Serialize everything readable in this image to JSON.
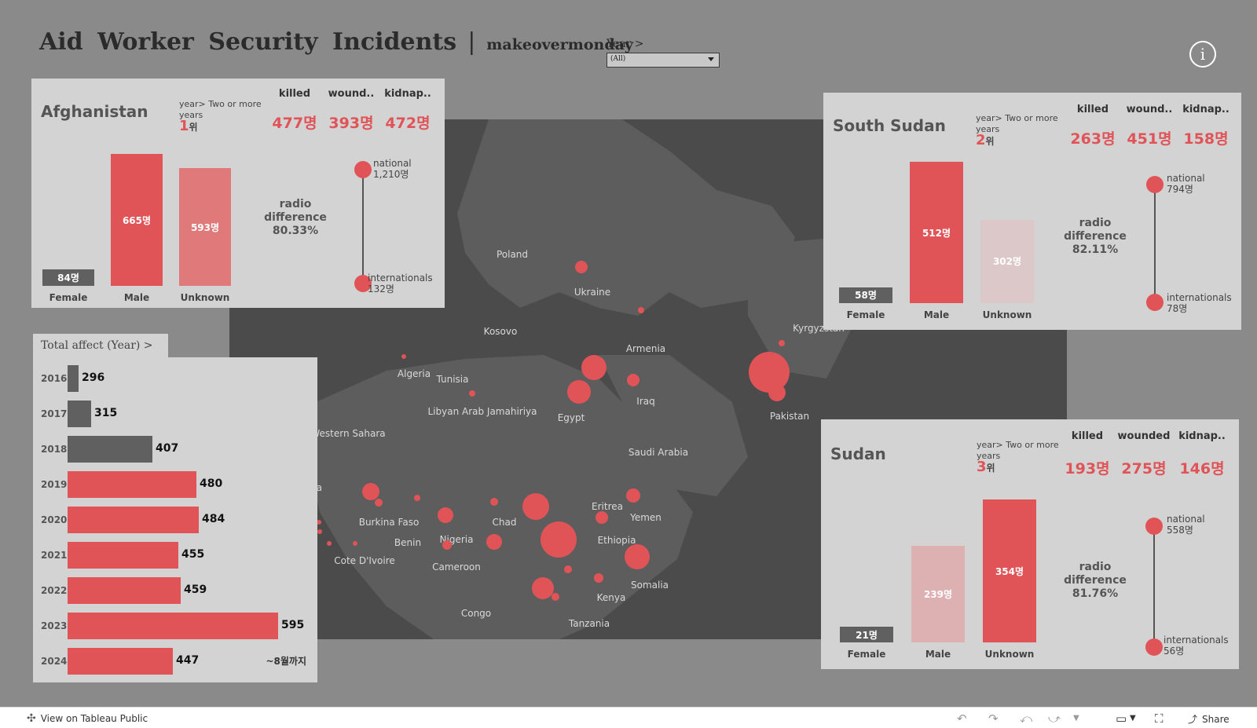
{
  "header": {
    "title": "Aid Worker Security Incidents",
    "separator": "|",
    "subtitle": "makeovermonday"
  },
  "filter": {
    "label": "Year  >",
    "value": "(All)"
  },
  "info_icon": "i",
  "colors": {
    "accent": "#e05458",
    "dark_bar": "#606060",
    "panel": "#d3d3d3",
    "map": "#4b4b4b"
  },
  "afghanistan": {
    "name": "Afghanistan",
    "rank_note": "year> Two or more years",
    "rank": "1",
    "rank_unit": "위",
    "stat_headers": [
      "killed",
      "wound..",
      "kidnap.."
    ],
    "stat_values": [
      "477명",
      "393명",
      "472명"
    ],
    "bars": [
      {
        "cat": "Female",
        "label": "84명",
        "value": 84
      },
      {
        "cat": "Male",
        "label": "665명",
        "value": 665
      },
      {
        "cat": "Unknown",
        "label": "593명",
        "value": 593
      }
    ],
    "radio": "radio difference",
    "radio_pct": "80.33%",
    "national_label": "national",
    "national_val": "1,210명",
    "intl_label": "internationals",
    "intl_val": "132명"
  },
  "south_sudan": {
    "name": "South Sudan",
    "rank_note": "year> Two or more years",
    "rank": "2",
    "rank_unit": "위",
    "stat_headers": [
      "killed",
      "wound..",
      "kidnap.."
    ],
    "stat_values": [
      "263명",
      "451명",
      "158명"
    ],
    "bars": [
      {
        "cat": "Female",
        "label": "58명",
        "value": 58
      },
      {
        "cat": "Male",
        "label": "512명",
        "value": 512
      },
      {
        "cat": "Unknown",
        "label": "302명",
        "value": 302
      }
    ],
    "radio": "radio difference",
    "radio_pct": "82.11%",
    "national_label": "national",
    "national_val": "794명",
    "intl_label": "internationals",
    "intl_val": "78명"
  },
  "sudan": {
    "name": "Sudan",
    "rank_note": "year> Two or more years",
    "rank": "3",
    "rank_unit": "위",
    "stat_headers": [
      "killed",
      "wounded",
      "kidnap.."
    ],
    "stat_values": [
      "193명",
      "275명",
      "146명"
    ],
    "bars": [
      {
        "cat": "Female",
        "label": "21명",
        "value": 21
      },
      {
        "cat": "Male",
        "label": "239명",
        "value": 239
      },
      {
        "cat": "Unknown",
        "label": "354명",
        "value": 354
      }
    ],
    "radio": "radio difference",
    "radio_pct": "81.76%",
    "national_label": "national",
    "national_val": "558명",
    "intl_label": "internationals",
    "intl_val": "56명"
  },
  "total_affect": {
    "header": "Total  affect  (Year)  >",
    "note": "~8월까지",
    "rows": [
      {
        "year": "2016",
        "value": 296,
        "highlight": false
      },
      {
        "year": "2017",
        "value": 315,
        "highlight": false
      },
      {
        "year": "2018",
        "value": 407,
        "highlight": false
      },
      {
        "year": "2019",
        "value": 480,
        "highlight": true
      },
      {
        "year": "2020",
        "value": 484,
        "highlight": true
      },
      {
        "year": "2021",
        "value": 455,
        "highlight": true
      },
      {
        "year": "2022",
        "value": 459,
        "highlight": true
      },
      {
        "year": "2023",
        "value": 595,
        "highlight": true
      },
      {
        "year": "2024",
        "value": 447,
        "highlight": true
      }
    ]
  },
  "map_labels": [
    "Poland",
    "Ukraine",
    "Kosovo",
    "Armenia",
    "Kyrgyzstan",
    "Algeria",
    "Tunisia",
    "Libyan Arab Jamahiriya",
    "Egypt",
    "Iraq",
    "Pakistan",
    "Western Sahara",
    "Saudi Arabia",
    "Mauritania",
    "Eritrea",
    "Yemen",
    "Burkina Faso",
    "Chad",
    "Nigeria",
    "Ethiopia",
    "Benin",
    "Cote D'Ivoire",
    "Cameroon",
    "Somalia",
    "Kenya",
    "Congo",
    "Tanzania"
  ],
  "footer": {
    "tableau": "View on Tableau Public",
    "share": "Share"
  }
}
